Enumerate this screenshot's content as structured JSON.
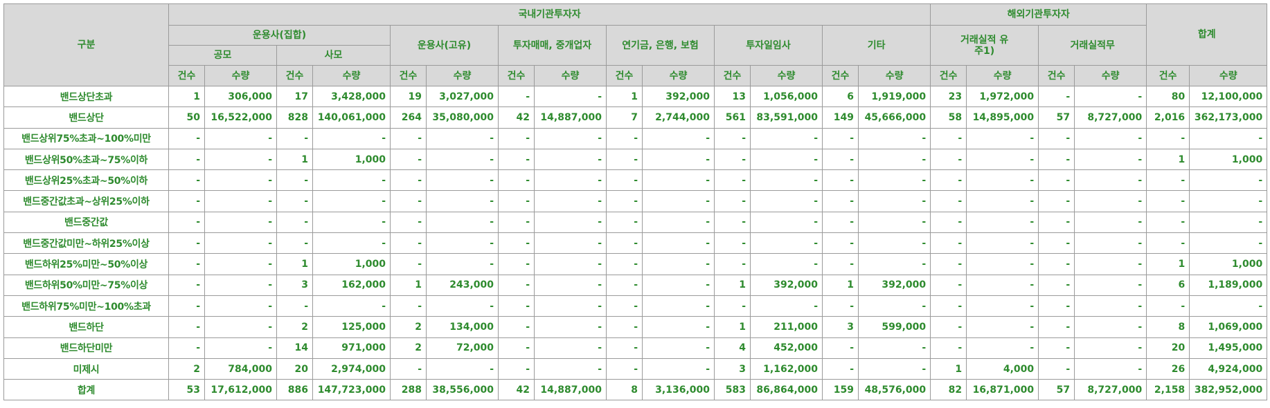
{
  "header": {
    "category": "구분",
    "domestic_group": "국내기관투자자",
    "foreign_group": "해외기관투자자",
    "total": "합계",
    "groups": [
      {
        "key": "am_collective",
        "label": "운용사(집합)",
        "subs": [
          "공모",
          "사모"
        ]
      },
      {
        "key": "am_proprietary",
        "label": "운용사(고유)"
      },
      {
        "key": "dealer_broker",
        "label": "투자매매, 중개업자"
      },
      {
        "key": "pension_bank_ins",
        "label": "연기금, 은행, 보험"
      },
      {
        "key": "discretionary",
        "label": "투자일임사"
      },
      {
        "key": "other",
        "label": "기타"
      },
      {
        "key": "foreign_with_record",
        "label": "거래실적 유",
        "label2": "주1)"
      },
      {
        "key": "foreign_no_record",
        "label": "거래실적무"
      }
    ],
    "count": "건수",
    "qty": "수량"
  },
  "rows": [
    {
      "label": "밴드상단초과",
      "cells": [
        "1",
        "306,000",
        "17",
        "3,428,000",
        "19",
        "3,027,000",
        "-",
        "-",
        "1",
        "392,000",
        "13",
        "1,056,000",
        "6",
        "1,919,000",
        "23",
        "1,972,000",
        "-",
        "-",
        "80",
        "12,100,000"
      ]
    },
    {
      "label": "밴드상단",
      "cells": [
        "50",
        "16,522,000",
        "828",
        "140,061,000",
        "264",
        "35,080,000",
        "42",
        "14,887,000",
        "7",
        "2,744,000",
        "561",
        "83,591,000",
        "149",
        "45,666,000",
        "58",
        "14,895,000",
        "57",
        "8,727,000",
        "2,016",
        "362,173,000"
      ]
    },
    {
      "label": "밴드상위75%초과~100%미만",
      "cells": [
        "-",
        "-",
        "-",
        "-",
        "-",
        "-",
        "-",
        "-",
        "-",
        "-",
        "-",
        "-",
        "-",
        "-",
        "-",
        "-",
        "-",
        "-",
        "-",
        "-"
      ]
    },
    {
      "label": "밴드상위50%초과~75%이하",
      "cells": [
        "-",
        "-",
        "1",
        "1,000",
        "-",
        "-",
        "-",
        "-",
        "-",
        "-",
        "-",
        "-",
        "-",
        "-",
        "-",
        "-",
        "-",
        "-",
        "1",
        "1,000"
      ]
    },
    {
      "label": "밴드상위25%초과~50%이하",
      "cells": [
        "-",
        "-",
        "-",
        "-",
        "-",
        "-",
        "-",
        "-",
        "-",
        "-",
        "-",
        "-",
        "-",
        "-",
        "-",
        "-",
        "-",
        "-",
        "-",
        "-"
      ]
    },
    {
      "label": "밴드중간값초과~상위25%이하",
      "cells": [
        "-",
        "-",
        "-",
        "-",
        "-",
        "-",
        "-",
        "-",
        "-",
        "-",
        "-",
        "-",
        "-",
        "-",
        "-",
        "-",
        "-",
        "-",
        "-",
        "-"
      ]
    },
    {
      "label": "밴드중간값",
      "cells": [
        "-",
        "-",
        "-",
        "-",
        "-",
        "-",
        "-",
        "-",
        "-",
        "-",
        "-",
        "-",
        "-",
        "-",
        "-",
        "-",
        "-",
        "-",
        "-",
        "-"
      ]
    },
    {
      "label": "밴드중간값미만~하위25%이상",
      "cells": [
        "-",
        "-",
        "-",
        "-",
        "-",
        "-",
        "-",
        "-",
        "-",
        "-",
        "-",
        "-",
        "-",
        "-",
        "-",
        "-",
        "-",
        "-",
        "-",
        "-"
      ]
    },
    {
      "label": "밴드하위25%미만~50%이상",
      "cells": [
        "-",
        "-",
        "1",
        "1,000",
        "-",
        "-",
        "-",
        "-",
        "-",
        "-",
        "-",
        "-",
        "-",
        "-",
        "-",
        "-",
        "-",
        "-",
        "1",
        "1,000"
      ]
    },
    {
      "label": "밴드하위50%미만~75%이상",
      "cells": [
        "-",
        "-",
        "3",
        "162,000",
        "1",
        "243,000",
        "-",
        "-",
        "-",
        "-",
        "1",
        "392,000",
        "1",
        "392,000",
        "-",
        "-",
        "-",
        "-",
        "6",
        "1,189,000"
      ]
    },
    {
      "label": "밴드하위75%미만~100%초과",
      "cells": [
        "-",
        "-",
        "-",
        "-",
        "-",
        "-",
        "-",
        "-",
        "-",
        "-",
        "-",
        "-",
        "-",
        "-",
        "-",
        "-",
        "-",
        "-",
        "-",
        "-"
      ]
    },
    {
      "label": "밴드하단",
      "cells": [
        "-",
        "-",
        "2",
        "125,000",
        "2",
        "134,000",
        "-",
        "-",
        "-",
        "-",
        "1",
        "211,000",
        "3",
        "599,000",
        "-",
        "-",
        "-",
        "-",
        "8",
        "1,069,000"
      ]
    },
    {
      "label": "밴드하단미만",
      "cells": [
        "-",
        "-",
        "14",
        "971,000",
        "2",
        "72,000",
        "-",
        "-",
        "-",
        "-",
        "4",
        "452,000",
        "-",
        "-",
        "-",
        "-",
        "-",
        "-",
        "20",
        "1,495,000"
      ]
    },
    {
      "label": "미제시",
      "cells": [
        "2",
        "784,000",
        "20",
        "2,974,000",
        "-",
        "-",
        "-",
        "-",
        "-",
        "-",
        "3",
        "1,162,000",
        "-",
        "-",
        "1",
        "4,000",
        "-",
        "-",
        "26",
        "4,924,000"
      ]
    },
    {
      "label": "합계",
      "cells": [
        "53",
        "17,612,000",
        "886",
        "147,723,000",
        "288",
        "38,556,000",
        "42",
        "14,887,000",
        "8",
        "3,136,000",
        "583",
        "86,864,000",
        "159",
        "48,576,000",
        "82",
        "16,871,000",
        "57",
        "8,727,000",
        "2,158",
        "382,952,000"
      ]
    }
  ]
}
